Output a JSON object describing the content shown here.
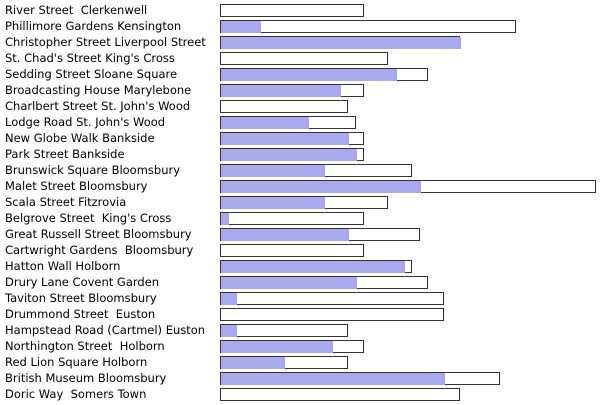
{
  "chart_data": {
    "type": "bar",
    "orientation": "horizontal",
    "stacking": "overlay",
    "colors": {
      "available": "#a9a9ee",
      "capacity_fill": "#ffffff",
      "capacity_border": "#333333"
    },
    "categories": [
      "River Street  Clerkenwell",
      "Phillimore Gardens Kensington",
      "Christopher Street Liverpool Street",
      "St. Chad's Street King's Cross",
      "Sedding Street Sloane Square",
      "Broadcasting House Marylebone",
      "Charlbert Street St. John's Wood",
      "Lodge Road St. John's Wood",
      "New Globe Walk Bankside",
      "Park Street Bankside",
      "Brunswick Square Bloomsbury",
      "Malet Street Bloomsbury",
      "Scala Street Fitzrovia",
      "Belgrove Street  King's Cross",
      "Great Russell Street Bloomsbury",
      "Cartwright Gardens  Bloomsbury",
      "Hatton Wall Holborn",
      "Drury Lane Covent Garden",
      "Taviton Street Bloomsbury",
      "Drummond Street  Euston",
      "Hampstead Road (Cartmel) Euston",
      "Northington Street  Holborn",
      "Red Lion Square Holborn",
      "British Museum Bloomsbury",
      "Doric Way  Somers Town"
    ],
    "series": [
      {
        "values": [
          0,
          5,
          30,
          0,
          22,
          15,
          0,
          11,
          16,
          17,
          13,
          25,
          13,
          1,
          16,
          0,
          23,
          17,
          2,
          0,
          2,
          14,
          8,
          28,
          0
        ]
      },
      {
        "values": [
          18,
          37,
          30,
          21,
          26,
          18,
          16,
          17,
          18,
          18,
          24,
          47,
          21,
          18,
          25,
          18,
          24,
          26,
          28,
          28,
          16,
          18,
          16,
          35,
          30
        ]
      }
    ]
  }
}
